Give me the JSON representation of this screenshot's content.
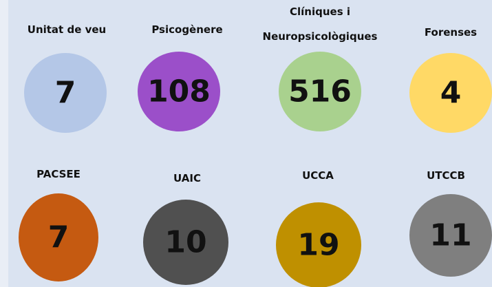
{
  "items": [
    {
      "label": [
        "Unitat de veu"
      ],
      "value": 7,
      "color": "#b4c7e7"
    },
    {
      "label": [
        "Psicogènere"
      ],
      "value": 108,
      "color": "#9b4fc9"
    },
    {
      "label": [
        "Clíniques i",
        "Neuropsicològiques"
      ],
      "value": 516,
      "color": "#a9d18e"
    },
    {
      "label": [
        "Forenses"
      ],
      "value": 4,
      "color": "#ffd966"
    },
    {
      "label": [
        "PACSEE"
      ],
      "value": 7,
      "color": "#c55a11"
    },
    {
      "label": [
        "UAIC"
      ],
      "value": 10,
      "color": "#505050"
    },
    {
      "label": [
        "UCCA"
      ],
      "value": 19,
      "color": "#bf9000"
    },
    {
      "label": [
        "UTCCB"
      ],
      "value": 11,
      "color": "#7f7f7f"
    }
  ]
}
